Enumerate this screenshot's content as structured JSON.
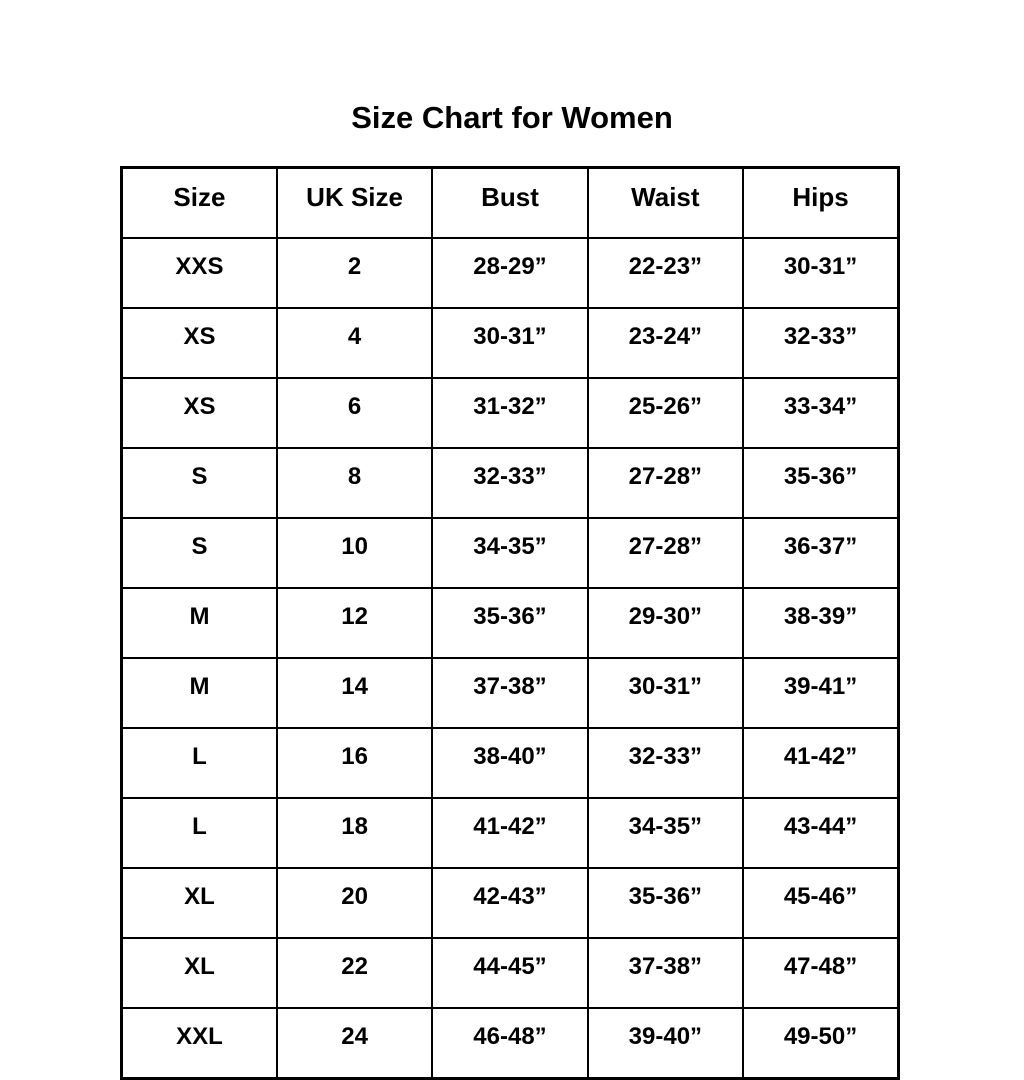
{
  "title": "Size Chart for Women",
  "chart_data": {
    "type": "table",
    "title": "Size Chart for Women",
    "columns": [
      "Size",
      "UK Size",
      "Bust",
      "Waist",
      "Hips"
    ],
    "rows": [
      [
        "XXS",
        "2",
        "28-29”",
        "22-23”",
        "30-31”"
      ],
      [
        "XS",
        "4",
        "30-31”",
        "23-24”",
        "32-33”"
      ],
      [
        "XS",
        "6",
        "31-32”",
        "25-26”",
        "33-34”"
      ],
      [
        "S",
        "8",
        "32-33”",
        "27-28”",
        "35-36”"
      ],
      [
        "S",
        "10",
        "34-35”",
        "27-28”",
        "36-37”"
      ],
      [
        "M",
        "12",
        "35-36”",
        "29-30”",
        "38-39”"
      ],
      [
        "M",
        "14",
        "37-38”",
        "30-31”",
        "39-41”"
      ],
      [
        "L",
        "16",
        "38-40”",
        "32-33”",
        "41-42”"
      ],
      [
        "L",
        "18",
        "41-42”",
        "34-35”",
        "43-44”"
      ],
      [
        "XL",
        "20",
        "42-43”",
        "35-36”",
        "45-46”"
      ],
      [
        "XL",
        "22",
        "44-45”",
        "37-38”",
        "47-48”"
      ],
      [
        "XXL",
        "24",
        "46-48”",
        "39-40”",
        "49-50”"
      ]
    ],
    "colors": {
      "text": "#000000",
      "border": "#000000",
      "background": "#ffffff"
    },
    "layout": {
      "grid": true,
      "legend": "none",
      "column_count": 5,
      "row_count": 12
    }
  }
}
